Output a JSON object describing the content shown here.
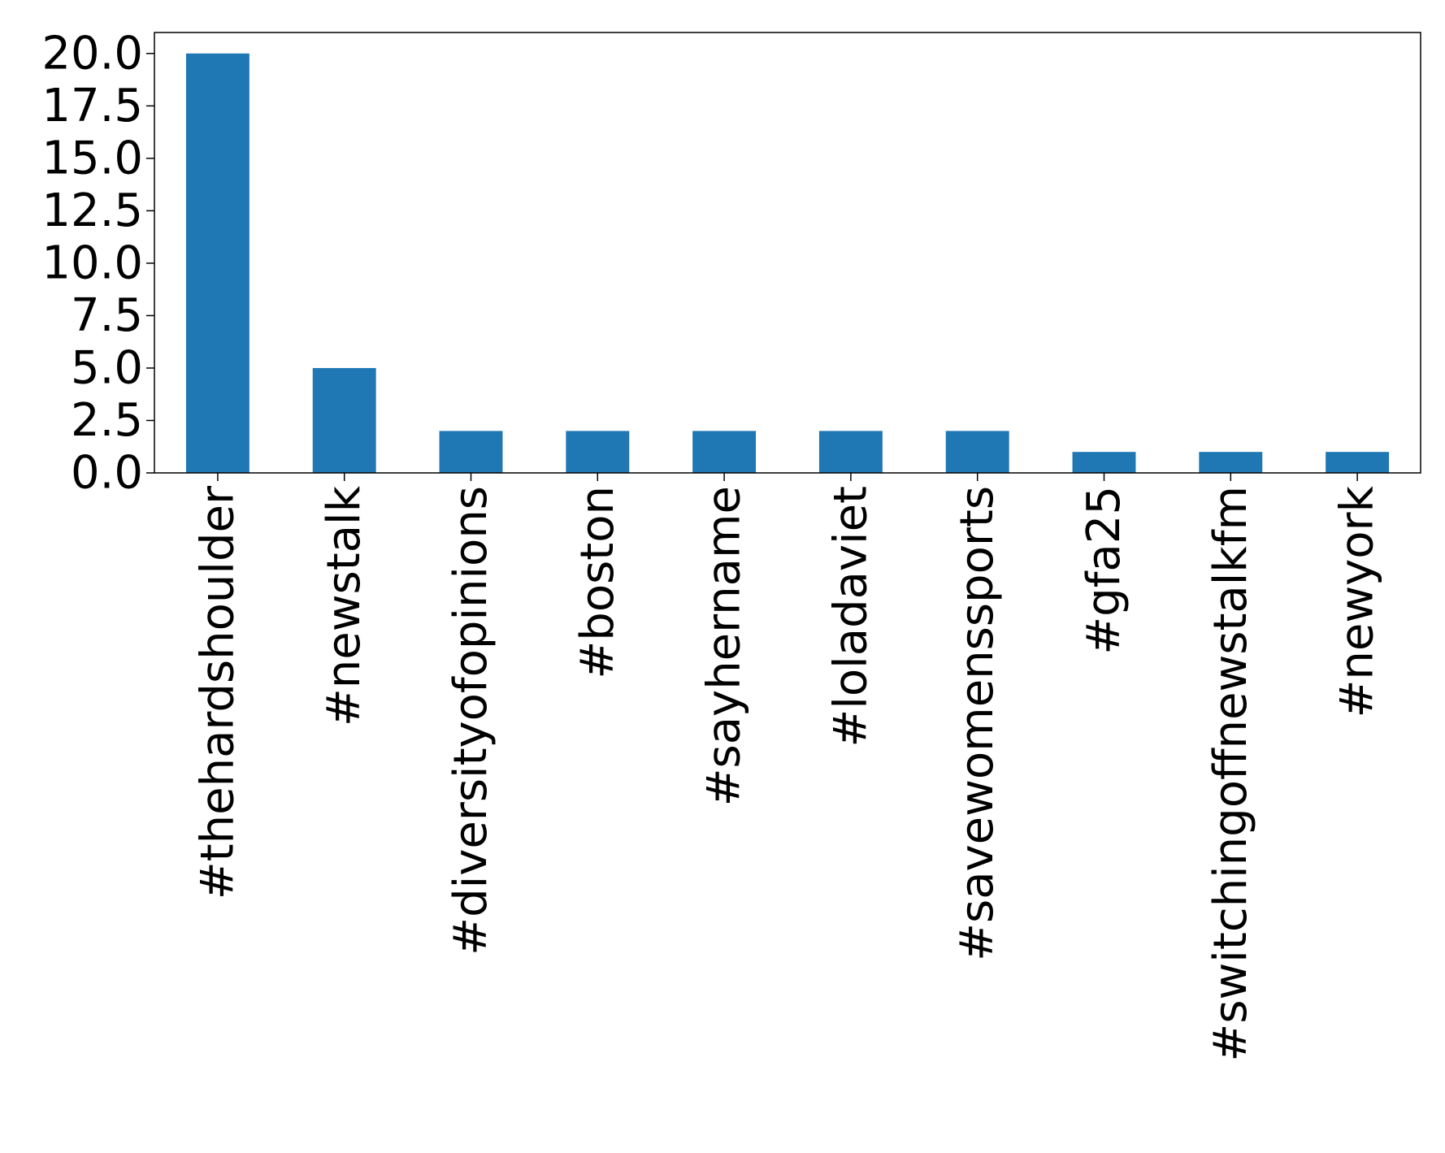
{
  "chart_data": {
    "type": "bar",
    "title": "",
    "xlabel": "",
    "ylabel": "",
    "categories": [
      "#thehardshoulder",
      "#newstalk",
      "#diversityofopinions",
      "#boston",
      "#sayhername",
      "#loladaviet",
      "#savewomenssports",
      "#gfa25",
      "#switchingoffnewstalkfm",
      "#newyork"
    ],
    "values": [
      20,
      5,
      2,
      2,
      2,
      2,
      2,
      1,
      1,
      1
    ],
    "ylim": [
      0,
      21
    ],
    "yticks": [
      0.0,
      2.5,
      5.0,
      7.5,
      10.0,
      12.5,
      15.0,
      17.5,
      20.0
    ],
    "ytick_labels": [
      "0.0",
      "2.5",
      "5.0",
      "7.5",
      "10.0",
      "12.5",
      "15.0",
      "17.5",
      "20.0"
    ],
    "bar_color": "#1f77b4",
    "grid": false,
    "legend": "none"
  }
}
